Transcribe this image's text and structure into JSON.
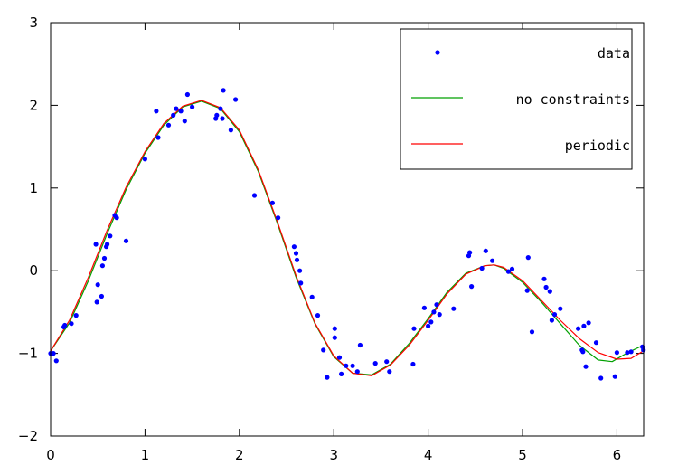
{
  "chart_data": {
    "type": "line",
    "title": "",
    "xlabel": "",
    "ylabel": "",
    "xlim": [
      0,
      6.2832
    ],
    "ylim": [
      -2,
      3
    ],
    "xticks": [
      0,
      1,
      2,
      3,
      4,
      5,
      6
    ],
    "yticks": [
      -2,
      -1,
      0,
      1,
      2,
      3
    ],
    "tick_labels": {
      "x": [
        "0",
        "1",
        "2",
        "3",
        "4",
        "5",
        "6"
      ],
      "y": [
        "−2",
        "−1",
        "0",
        "1",
        "2",
        "3"
      ]
    },
    "grid": false,
    "legend": {
      "placement": "top-right",
      "entries": [
        {
          "label": "data",
          "marker": "dot",
          "color": "#0000ff"
        },
        {
          "label": "no constraints",
          "marker": "line",
          "color": "#00a000"
        },
        {
          "label": "periodic",
          "marker": "line",
          "color": "#ff0000"
        }
      ]
    },
    "series": [
      {
        "name": "data",
        "kind": "scatter",
        "color": "#0000ff",
        "points": [
          [
            0.0,
            -1.0
          ],
          [
            0.03,
            -1.0
          ],
          [
            0.06,
            -1.09
          ],
          [
            0.14,
            -0.68
          ],
          [
            0.15,
            -0.66
          ],
          [
            0.22,
            -0.64
          ],
          [
            0.27,
            -0.54
          ],
          [
            0.48,
            0.32
          ],
          [
            0.49,
            -0.38
          ],
          [
            0.5,
            -0.17
          ],
          [
            0.54,
            -0.31
          ],
          [
            0.55,
            0.06
          ],
          [
            0.57,
            0.15
          ],
          [
            0.59,
            0.29
          ],
          [
            0.6,
            0.32
          ],
          [
            0.63,
            0.42
          ],
          [
            0.68,
            0.67
          ],
          [
            0.7,
            0.64
          ],
          [
            0.8,
            0.36
          ],
          [
            1.0,
            1.35
          ],
          [
            1.12,
            1.93
          ],
          [
            1.14,
            1.61
          ],
          [
            1.25,
            1.76
          ],
          [
            1.3,
            1.88
          ],
          [
            1.33,
            1.96
          ],
          [
            1.38,
            1.93
          ],
          [
            1.42,
            1.81
          ],
          [
            1.45,
            2.13
          ],
          [
            1.5,
            1.98
          ],
          [
            1.75,
            1.84
          ],
          [
            1.76,
            1.88
          ],
          [
            1.8,
            1.96
          ],
          [
            1.82,
            1.84
          ],
          [
            1.83,
            2.18
          ],
          [
            1.91,
            1.7
          ],
          [
            1.96,
            2.07
          ],
          [
            2.16,
            0.91
          ],
          [
            2.35,
            0.82
          ],
          [
            2.41,
            0.64
          ],
          [
            2.58,
            0.29
          ],
          [
            2.6,
            0.21
          ],
          [
            2.61,
            0.13
          ],
          [
            2.64,
            0.0
          ],
          [
            2.65,
            -0.15
          ],
          [
            2.77,
            -0.32
          ],
          [
            2.83,
            -0.54
          ],
          [
            2.89,
            -0.96
          ],
          [
            2.93,
            -1.29
          ],
          [
            3.01,
            -0.7
          ],
          [
            3.01,
            -0.81
          ],
          [
            3.06,
            -1.05
          ],
          [
            3.08,
            -1.25
          ],
          [
            3.13,
            -1.15
          ],
          [
            3.2,
            -1.15
          ],
          [
            3.25,
            -1.22
          ],
          [
            3.28,
            -0.9
          ],
          [
            3.44,
            -1.12
          ],
          [
            3.56,
            -1.1
          ],
          [
            3.59,
            -1.22
          ],
          [
            3.84,
            -1.13
          ],
          [
            3.85,
            -0.7
          ],
          [
            3.96,
            -0.45
          ],
          [
            4.0,
            -0.67
          ],
          [
            4.03,
            -0.62
          ],
          [
            4.06,
            -0.5
          ],
          [
            4.09,
            -0.41
          ],
          [
            4.12,
            -0.53
          ],
          [
            4.27,
            -0.46
          ],
          [
            4.43,
            0.18
          ],
          [
            4.44,
            0.22
          ],
          [
            4.46,
            -0.19
          ],
          [
            4.57,
            0.03
          ],
          [
            4.61,
            0.24
          ],
          [
            4.68,
            0.12
          ],
          [
            4.85,
            -0.01
          ],
          [
            4.89,
            0.02
          ],
          [
            5.05,
            -0.24
          ],
          [
            5.06,
            0.16
          ],
          [
            5.1,
            -0.74
          ],
          [
            5.23,
            -0.1
          ],
          [
            5.25,
            -0.2
          ],
          [
            5.29,
            -0.25
          ],
          [
            5.31,
            -0.6
          ],
          [
            5.34,
            -0.53
          ],
          [
            5.4,
            -0.46
          ],
          [
            5.59,
            -0.7
          ],
          [
            5.63,
            -0.96
          ],
          [
            5.64,
            -0.98
          ],
          [
            5.65,
            -0.67
          ],
          [
            5.67,
            -1.16
          ],
          [
            5.7,
            -0.63
          ],
          [
            5.78,
            -0.87
          ],
          [
            5.83,
            -1.3
          ],
          [
            5.98,
            -1.28
          ],
          [
            6.0,
            -0.99
          ],
          [
            6.11,
            -0.99
          ],
          [
            6.15,
            -0.98
          ],
          [
            6.27,
            -0.92
          ],
          [
            6.28,
            -0.96
          ]
        ]
      },
      {
        "name": "no constraints",
        "kind": "line",
        "color": "#00a000",
        "points": [
          [
            0.0,
            -0.97
          ],
          [
            0.2,
            -0.63
          ],
          [
            0.4,
            -0.12
          ],
          [
            0.6,
            0.45
          ],
          [
            0.8,
            0.98
          ],
          [
            1.0,
            1.42
          ],
          [
            1.2,
            1.76
          ],
          [
            1.4,
            1.98
          ],
          [
            1.6,
            2.05
          ],
          [
            1.8,
            1.96
          ],
          [
            2.0,
            1.68
          ],
          [
            2.2,
            1.2
          ],
          [
            2.4,
            0.58
          ],
          [
            2.6,
            -0.08
          ],
          [
            2.8,
            -0.64
          ],
          [
            3.0,
            -1.04
          ],
          [
            3.2,
            -1.24
          ],
          [
            3.4,
            -1.26
          ],
          [
            3.6,
            -1.13
          ],
          [
            3.8,
            -0.88
          ],
          [
            4.0,
            -0.58
          ],
          [
            4.2,
            -0.26
          ],
          [
            4.4,
            -0.03
          ],
          [
            4.6,
            0.06
          ],
          [
            4.7,
            0.07
          ],
          [
            4.8,
            0.03
          ],
          [
            5.0,
            -0.14
          ],
          [
            5.2,
            -0.38
          ],
          [
            5.4,
            -0.64
          ],
          [
            5.6,
            -0.9
          ],
          [
            5.8,
            -1.08
          ],
          [
            5.95,
            -1.1
          ],
          [
            6.1,
            -1.0
          ],
          [
            6.28,
            -0.9
          ]
        ]
      },
      {
        "name": "periodic",
        "kind": "line",
        "color": "#ff0000",
        "points": [
          [
            0.0,
            -0.97
          ],
          [
            0.2,
            -0.6
          ],
          [
            0.4,
            -0.08
          ],
          [
            0.6,
            0.49
          ],
          [
            0.8,
            1.01
          ],
          [
            1.0,
            1.44
          ],
          [
            1.2,
            1.78
          ],
          [
            1.4,
            1.99
          ],
          [
            1.6,
            2.06
          ],
          [
            1.8,
            1.97
          ],
          [
            2.0,
            1.7
          ],
          [
            2.2,
            1.22
          ],
          [
            2.4,
            0.6
          ],
          [
            2.6,
            -0.06
          ],
          [
            2.8,
            -0.63
          ],
          [
            3.0,
            -1.03
          ],
          [
            3.2,
            -1.24
          ],
          [
            3.4,
            -1.27
          ],
          [
            3.6,
            -1.14
          ],
          [
            3.8,
            -0.9
          ],
          [
            4.0,
            -0.6
          ],
          [
            4.2,
            -0.28
          ],
          [
            4.4,
            -0.04
          ],
          [
            4.6,
            0.06
          ],
          [
            4.7,
            0.07
          ],
          [
            4.8,
            0.04
          ],
          [
            5.0,
            -0.12
          ],
          [
            5.2,
            -0.36
          ],
          [
            5.4,
            -0.6
          ],
          [
            5.6,
            -0.82
          ],
          [
            5.8,
            -0.99
          ],
          [
            6.0,
            -1.07
          ],
          [
            6.15,
            -1.06
          ],
          [
            6.28,
            -0.97
          ]
        ]
      }
    ]
  }
}
